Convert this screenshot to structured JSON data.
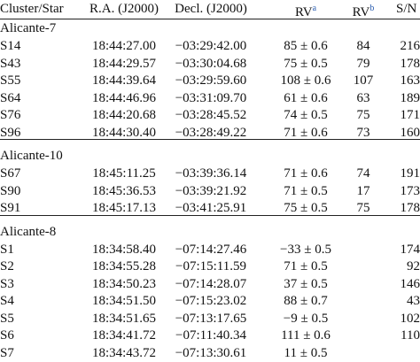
{
  "table": {
    "columns": [
      {
        "text": "Cluster/Star"
      },
      {
        "text": "R.A. (J2000)"
      },
      {
        "text": "Decl. (J2000)"
      },
      {
        "text": "RV",
        "sup": "a"
      },
      {
        "text": "RV",
        "sup": "b"
      },
      {
        "text": "S/N"
      }
    ],
    "groups": [
      {
        "name": "Alicante-7",
        "rows": [
          [
            "S14",
            "18:44:27.00",
            "−03:29:42.00",
            "85 ± 0.6",
            "84",
            "216"
          ],
          [
            "S43",
            "18:44:29.57",
            "−03:30:04.68",
            "75 ± 0.5",
            "79",
            "178"
          ],
          [
            "S55",
            "18:44:39.64",
            "−03:29:59.60",
            "108 ± 0.6",
            "107",
            "163"
          ],
          [
            "S64",
            "18:44:46.96",
            "−03:31:09.70",
            "61 ± 0.6",
            "63",
            "189"
          ],
          [
            "S76",
            "18:44:20.68",
            "−03:28:45.52",
            "74 ± 0.5",
            "75",
            "171"
          ],
          [
            "S96",
            "18:44:30.40",
            "−03:28:49.22",
            "71 ± 0.6",
            "73",
            "160"
          ]
        ]
      },
      {
        "name": "Alicante-10",
        "rows": [
          [
            "S67",
            "18:45:11.25",
            "−03:39:36.14",
            "71 ± 0.6",
            "74",
            "191"
          ],
          [
            "S90",
            "18:45:36.53",
            "−03:39:21.92",
            "71 ± 0.5",
            "17",
            "173"
          ],
          [
            "S91",
            "18:45:17.13",
            "−03:41:25.91",
            "75 ± 0.5",
            "75",
            "178"
          ]
        ]
      },
      {
        "name": "Alicante-8",
        "rows": [
          [
            "S1",
            "18:34:58.40",
            "−07:14:27.46",
            "−33 ± 0.5",
            null,
            "174"
          ],
          [
            "S2",
            "18:34:55.28",
            "−07:15:11.59",
            "71 ± 0.5",
            null,
            "92"
          ],
          [
            "S3",
            "18:34:50.23",
            "−07:14:28.07",
            "37 ± 0.5",
            null,
            "146"
          ],
          [
            "S4",
            "18:34:51.50",
            "−07:15:23.02",
            "88 ± 0.7",
            null,
            "43"
          ],
          [
            "S5",
            "18:34:51.65",
            "−07:13:17.65",
            "−9 ± 0.5",
            null,
            "102"
          ],
          [
            "S6",
            "18:34:41.72",
            "−07:11:40.34",
            "111 ± 0.6",
            null,
            "110"
          ],
          [
            "S7",
            "18:34:43.72",
            "−07:13:30.61",
            "11 ± 0.5",
            null,
            null
          ]
        ]
      }
    ]
  }
}
